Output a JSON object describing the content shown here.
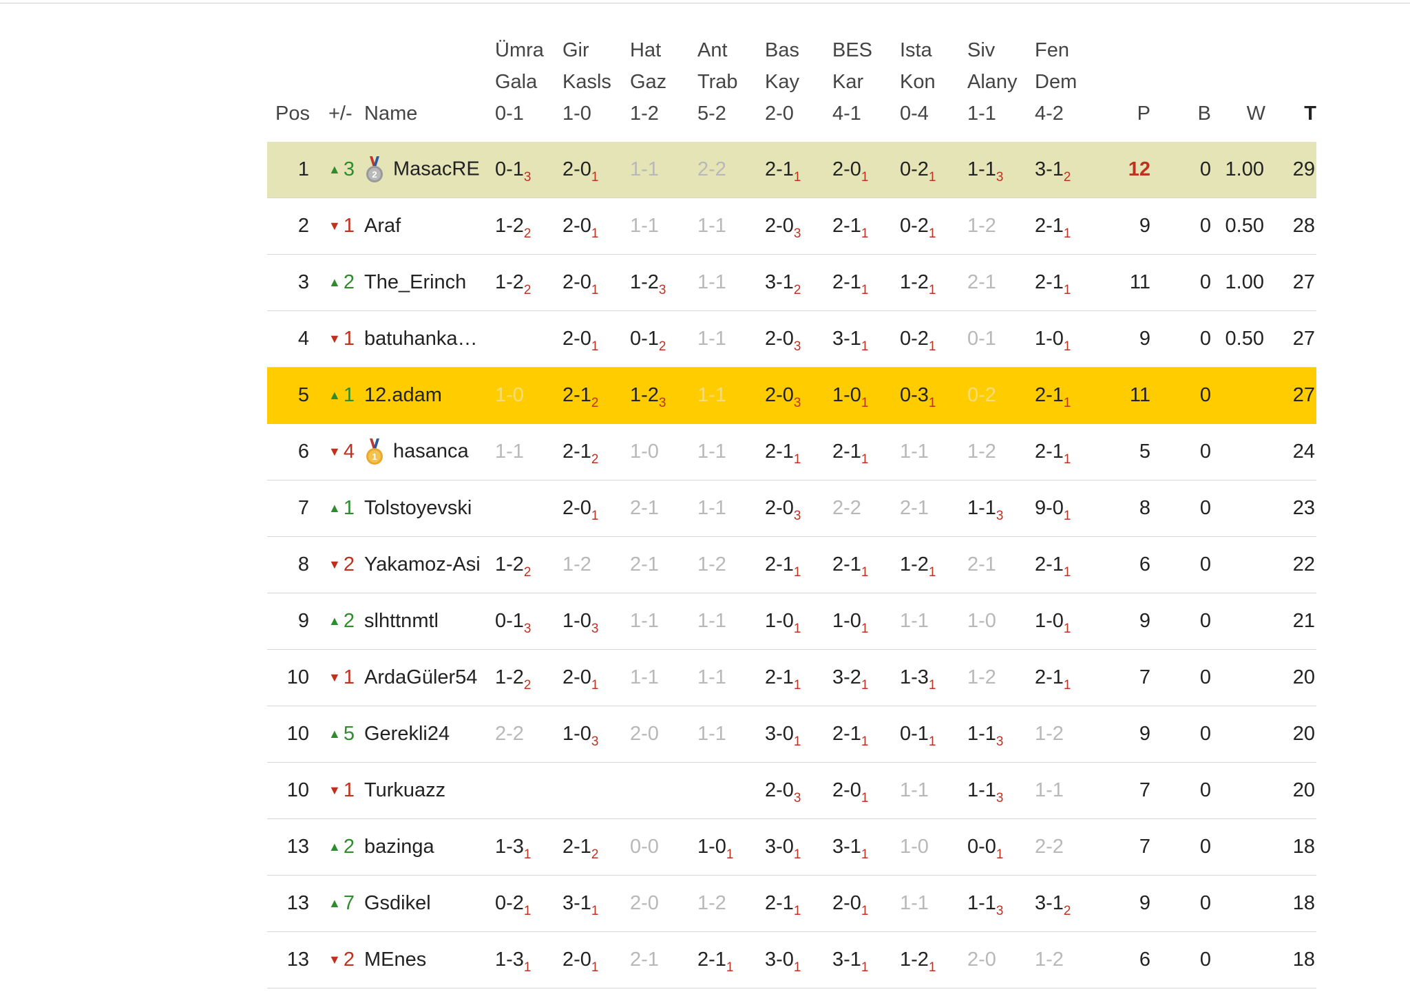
{
  "header": {
    "pos": "Pos",
    "chg": "+/-",
    "name": "Name",
    "matches": [
      {
        "l1": "Ümra",
        "l2": "Gala",
        "l3": "0-1"
      },
      {
        "l1": "Gir",
        "l2": "Kasls",
        "l3": "1-0"
      },
      {
        "l1": "Hat",
        "l2": "Gaz",
        "l3": "1-2"
      },
      {
        "l1": "Ant",
        "l2": "Trab",
        "l3": "5-2"
      },
      {
        "l1": "Bas",
        "l2": "Kay",
        "l3": "2-0"
      },
      {
        "l1": "BES",
        "l2": "Kar",
        "l3": "4-1"
      },
      {
        "l1": "Ista",
        "l2": "Kon",
        "l3": "0-4"
      },
      {
        "l1": "Siv",
        "l2": "Alany",
        "l3": "1-1"
      },
      {
        "l1": "Fen",
        "l2": "Dem",
        "l3": "4-2"
      }
    ],
    "p": "P",
    "b": "B",
    "w": "W",
    "t": "T"
  },
  "colors": {
    "silver_row": "#e5e4b6",
    "gold_row": "#ffcc00",
    "up": "#2e8b2e",
    "down": "#c0301e",
    "points_sub": "#c0301e"
  },
  "rows": [
    {
      "pos": "1",
      "dir": "up",
      "chg": "3",
      "medal": "silver-medal-icon",
      "medal_text": "2",
      "name": "MasacRE",
      "hl": "silver",
      "p_red": true,
      "preds": [
        [
          "0-1",
          "3"
        ],
        [
          "2-0",
          "1"
        ],
        [
          "1-1",
          ""
        ],
        [
          "2-2",
          ""
        ],
        [
          "2-1",
          "1"
        ],
        [
          "2-0",
          "1"
        ],
        [
          "0-2",
          "1"
        ],
        [
          "1-1",
          "3"
        ],
        [
          "3-1",
          "2"
        ]
      ],
      "p": "12",
      "b": "0",
      "w": "1.00",
      "t": "29"
    },
    {
      "pos": "2",
      "dir": "down",
      "chg": "1",
      "name": "Araf",
      "preds": [
        [
          "1-2",
          "2"
        ],
        [
          "2-0",
          "1"
        ],
        [
          "1-1",
          ""
        ],
        [
          "1-1",
          ""
        ],
        [
          "2-0",
          "3"
        ],
        [
          "2-1",
          "1"
        ],
        [
          "0-2",
          "1"
        ],
        [
          "1-2",
          ""
        ],
        [
          "2-1",
          "1"
        ]
      ],
      "p": "9",
      "b": "0",
      "w": "0.50",
      "t": "28"
    },
    {
      "pos": "3",
      "dir": "up",
      "chg": "2",
      "name": "The_Erinch",
      "preds": [
        [
          "1-2",
          "2"
        ],
        [
          "2-0",
          "1"
        ],
        [
          "1-2",
          "3"
        ],
        [
          "1-1",
          ""
        ],
        [
          "3-1",
          "2"
        ],
        [
          "2-1",
          "1"
        ],
        [
          "1-2",
          "1"
        ],
        [
          "2-1",
          ""
        ],
        [
          "2-1",
          "1"
        ]
      ],
      "p": "11",
      "b": "0",
      "w": "1.00",
      "t": "27"
    },
    {
      "pos": "4",
      "dir": "down",
      "chg": "1",
      "name": "batuhanka…",
      "preds": [
        null,
        [
          "2-0",
          "1"
        ],
        [
          "0-1",
          "2"
        ],
        [
          "1-1",
          ""
        ],
        [
          "2-0",
          "3"
        ],
        [
          "3-1",
          "1"
        ],
        [
          "0-2",
          "1"
        ],
        [
          "0-1",
          ""
        ],
        [
          "1-0",
          "1"
        ]
      ],
      "p": "9",
      "b": "0",
      "w": "0.50",
      "t": "27"
    },
    {
      "pos": "5",
      "dir": "up",
      "chg": "1",
      "name": "12.adam",
      "hl": "gold",
      "preds": [
        [
          "1-0",
          ""
        ],
        [
          "2-1",
          "2"
        ],
        [
          "1-2",
          "3"
        ],
        [
          "1-1",
          ""
        ],
        [
          "2-0",
          "3"
        ],
        [
          "1-0",
          "1"
        ],
        [
          "0-3",
          "1"
        ],
        [
          "0-2",
          ""
        ],
        [
          "2-1",
          "1"
        ]
      ],
      "p": "11",
      "b": "0",
      "w": "",
      "t": "27"
    },
    {
      "pos": "6",
      "dir": "down",
      "chg": "4",
      "medal": "gold-medal-icon",
      "medal_text": "1",
      "name": "hasanca",
      "preds": [
        [
          "1-1",
          ""
        ],
        [
          "2-1",
          "2"
        ],
        [
          "1-0",
          ""
        ],
        [
          "1-1",
          ""
        ],
        [
          "2-1",
          "1"
        ],
        [
          "2-1",
          "1"
        ],
        [
          "1-1",
          ""
        ],
        [
          "1-2",
          ""
        ],
        [
          "2-1",
          "1"
        ]
      ],
      "p": "5",
      "b": "0",
      "w": "",
      "t": "24"
    },
    {
      "pos": "7",
      "dir": "up",
      "chg": "1",
      "name": "Tolstoyevski",
      "preds": [
        null,
        [
          "2-0",
          "1"
        ],
        [
          "2-1",
          ""
        ],
        [
          "1-1",
          ""
        ],
        [
          "2-0",
          "3"
        ],
        [
          "2-2",
          ""
        ],
        [
          "2-1",
          ""
        ],
        [
          "1-1",
          "3"
        ],
        [
          "9-0",
          "1"
        ]
      ],
      "p": "8",
      "b": "0",
      "w": "",
      "t": "23"
    },
    {
      "pos": "8",
      "dir": "down",
      "chg": "2",
      "name": "Yakamoz-Asi",
      "preds": [
        [
          "1-2",
          "2"
        ],
        [
          "1-2",
          ""
        ],
        [
          "2-1",
          ""
        ],
        [
          "1-2",
          ""
        ],
        [
          "2-1",
          "1"
        ],
        [
          "2-1",
          "1"
        ],
        [
          "1-2",
          "1"
        ],
        [
          "2-1",
          ""
        ],
        [
          "2-1",
          "1"
        ]
      ],
      "p": "6",
      "b": "0",
      "w": "",
      "t": "22"
    },
    {
      "pos": "9",
      "dir": "up",
      "chg": "2",
      "name": "slhttnmtl",
      "preds": [
        [
          "0-1",
          "3"
        ],
        [
          "1-0",
          "3"
        ],
        [
          "1-1",
          ""
        ],
        [
          "1-1",
          ""
        ],
        [
          "1-0",
          "1"
        ],
        [
          "1-0",
          "1"
        ],
        [
          "1-1",
          ""
        ],
        [
          "1-0",
          ""
        ],
        [
          "1-0",
          "1"
        ]
      ],
      "p": "9",
      "b": "0",
      "w": "",
      "t": "21"
    },
    {
      "pos": "10",
      "dir": "down",
      "chg": "1",
      "name": "ArdaGüler54",
      "preds": [
        [
          "1-2",
          "2"
        ],
        [
          "2-0",
          "1"
        ],
        [
          "1-1",
          ""
        ],
        [
          "1-1",
          ""
        ],
        [
          "2-1",
          "1"
        ],
        [
          "3-2",
          "1"
        ],
        [
          "1-3",
          "1"
        ],
        [
          "1-2",
          ""
        ],
        [
          "2-1",
          "1"
        ]
      ],
      "p": "7",
      "b": "0",
      "w": "",
      "t": "20"
    },
    {
      "pos": "10",
      "dir": "up",
      "chg": "5",
      "name": "Gerekli24",
      "preds": [
        [
          "2-2",
          ""
        ],
        [
          "1-0",
          "3"
        ],
        [
          "2-0",
          ""
        ],
        [
          "1-1",
          ""
        ],
        [
          "3-0",
          "1"
        ],
        [
          "2-1",
          "1"
        ],
        [
          "0-1",
          "1"
        ],
        [
          "1-1",
          "3"
        ],
        [
          "1-2",
          ""
        ]
      ],
      "p": "9",
      "b": "0",
      "w": "",
      "t": "20"
    },
    {
      "pos": "10",
      "dir": "down",
      "chg": "1",
      "name": "Turkuazz",
      "preds": [
        null,
        null,
        null,
        null,
        [
          "2-0",
          "3"
        ],
        [
          "2-0",
          "1"
        ],
        [
          "1-1",
          ""
        ],
        [
          "1-1",
          "3"
        ],
        [
          "1-1",
          ""
        ]
      ],
      "p": "7",
      "b": "0",
      "w": "",
      "t": "20"
    },
    {
      "pos": "13",
      "dir": "up",
      "chg": "2",
      "name": "bazinga",
      "preds": [
        [
          "1-3",
          "1"
        ],
        [
          "2-1",
          "2"
        ],
        [
          "0-0",
          ""
        ],
        [
          "1-0",
          "1"
        ],
        [
          "3-0",
          "1"
        ],
        [
          "3-1",
          "1"
        ],
        [
          "1-0",
          ""
        ],
        [
          "0-0",
          "1"
        ],
        [
          "2-2",
          ""
        ]
      ],
      "p": "7",
      "b": "0",
      "w": "",
      "t": "18"
    },
    {
      "pos": "13",
      "dir": "up",
      "chg": "7",
      "name": "Gsdikel",
      "preds": [
        [
          "0-2",
          "1"
        ],
        [
          "3-1",
          "1"
        ],
        [
          "2-0",
          ""
        ],
        [
          "1-2",
          ""
        ],
        [
          "2-1",
          "1"
        ],
        [
          "2-0",
          "1"
        ],
        [
          "1-1",
          ""
        ],
        [
          "1-1",
          "3"
        ],
        [
          "3-1",
          "2"
        ]
      ],
      "p": "9",
      "b": "0",
      "w": "",
      "t": "18"
    },
    {
      "pos": "13",
      "dir": "down",
      "chg": "2",
      "name": "MEnes",
      "preds": [
        [
          "1-3",
          "1"
        ],
        [
          "2-0",
          "1"
        ],
        [
          "2-1",
          ""
        ],
        [
          "2-1",
          "1"
        ],
        [
          "3-0",
          "1"
        ],
        [
          "3-1",
          "1"
        ],
        [
          "1-2",
          "1"
        ],
        [
          "2-0",
          ""
        ],
        [
          "1-2",
          ""
        ]
      ],
      "p": "6",
      "b": "0",
      "w": "",
      "t": "18"
    }
  ]
}
